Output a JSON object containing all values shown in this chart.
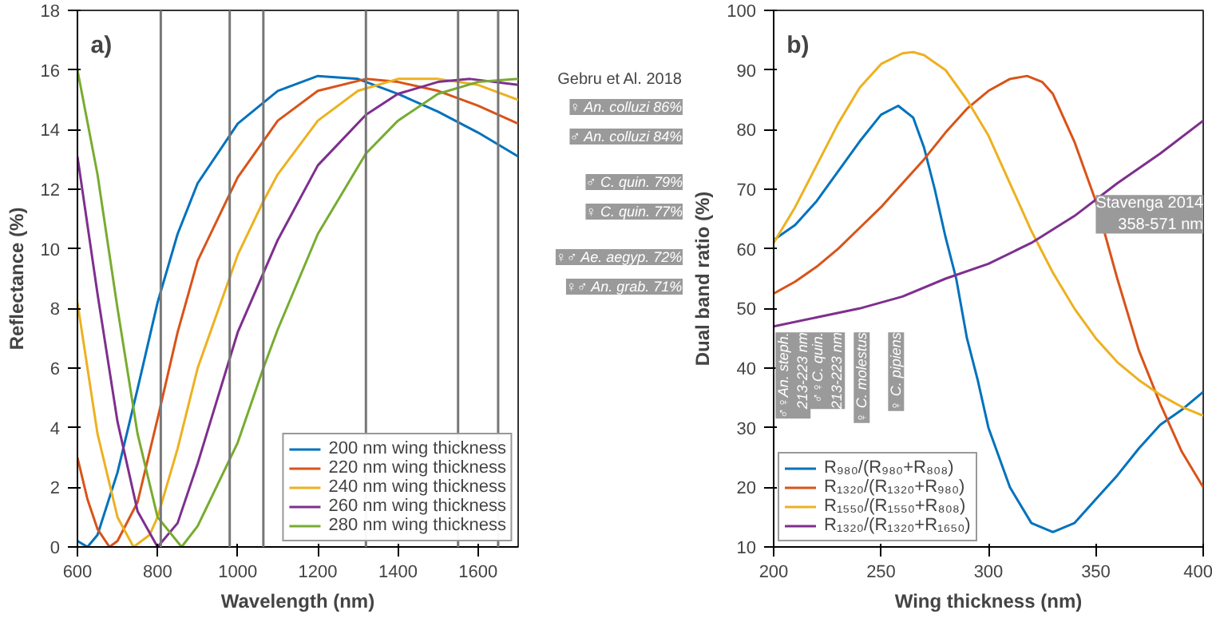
{
  "chart_data": [
    {
      "type": "line",
      "title": "a)",
      "xlabel": "Wavelength (nm)",
      "ylabel": "Reflectance (%)",
      "xlim": [
        600,
        1700
      ],
      "ylim": [
        0,
        18
      ],
      "xticks": [
        600,
        800,
        1000,
        1200,
        1400,
        1600
      ],
      "yticks": [
        0,
        2,
        4,
        6,
        8,
        10,
        12,
        14,
        16,
        18
      ],
      "grid": false,
      "legend": "bottom right",
      "line_style": "solid",
      "marker": "none",
      "series": [
        {
          "name": "200 nm wing thickness",
          "color": "#0072bd",
          "x": [
            600,
            625,
            650,
            700,
            750,
            800,
            850,
            900,
            1000,
            1100,
            1200,
            1300,
            1400,
            1500,
            1600,
            1700
          ],
          "values": [
            0.2,
            0,
            0.4,
            2.5,
            5.3,
            8.2,
            10.5,
            12.2,
            14.2,
            15.3,
            15.8,
            15.7,
            15.2,
            14.6,
            13.9,
            13.1
          ]
        },
        {
          "name": "220 nm wing thickness",
          "color": "#d95319",
          "x": [
            600,
            625,
            650,
            680,
            700,
            750,
            800,
            850,
            900,
            1000,
            1100,
            1200,
            1320,
            1400,
            1500,
            1600,
            1700
          ],
          "values": [
            3.0,
            1.6,
            0.6,
            0,
            0.2,
            1.5,
            4.3,
            7.2,
            9.6,
            12.4,
            14.3,
            15.3,
            15.7,
            15.6,
            15.3,
            14.8,
            14.2
          ]
        },
        {
          "name": "240 nm wing thickness",
          "color": "#edb120",
          "x": [
            600,
            650,
            700,
            740,
            780,
            800,
            850,
            900,
            1000,
            1064,
            1100,
            1200,
            1300,
            1400,
            1500,
            1600,
            1700
          ],
          "values": [
            8.2,
            3.8,
            1.0,
            0,
            0.4,
            1.0,
            3.3,
            6.0,
            9.8,
            11.6,
            12.5,
            14.3,
            15.3,
            15.7,
            15.7,
            15.5,
            15.0
          ]
        },
        {
          "name": "260 nm wing thickness",
          "color": "#7e2f8e",
          "x": [
            600,
            650,
            700,
            750,
            800,
            850,
            900,
            1000,
            1100,
            1200,
            1320,
            1400,
            1500,
            1580,
            1700
          ],
          "values": [
            13.1,
            8.5,
            4.2,
            1.2,
            0,
            0.8,
            2.8,
            7.2,
            10.3,
            12.8,
            14.5,
            15.2,
            15.6,
            15.7,
            15.5
          ]
        },
        {
          "name": "280 nm wing thickness",
          "color": "#77ac30",
          "x": [
            600,
            650,
            700,
            750,
            800,
            860,
            900,
            1000,
            1064,
            1100,
            1200,
            1320,
            1400,
            1500,
            1600,
            1700
          ],
          "values": [
            16.0,
            12.5,
            8.0,
            3.8,
            1.0,
            0,
            0.7,
            3.5,
            6.0,
            7.3,
            10.5,
            13.2,
            14.3,
            15.2,
            15.6,
            15.7
          ]
        }
      ],
      "ref_lines": [
        {
          "axis": "x",
          "value": 808,
          "color": "#777777"
        },
        {
          "axis": "x",
          "value": 980,
          "color": "#777777"
        },
        {
          "axis": "x",
          "value": 1064,
          "color": "#777777"
        },
        {
          "axis": "x",
          "value": 1320,
          "color": "#777777"
        },
        {
          "axis": "x",
          "value": 1550,
          "color": "#777777"
        },
        {
          "axis": "x",
          "value": 1650,
          "color": "#777777"
        }
      ]
    },
    {
      "type": "line",
      "title": "b)",
      "xlabel": "Wing thickness (nm)",
      "ylabel": "Dual band ratio (%)",
      "xlim": [
        200,
        400
      ],
      "ylim": [
        10,
        100
      ],
      "xticks": [
        200,
        250,
        300,
        350,
        400
      ],
      "yticks": [
        10,
        20,
        30,
        40,
        50,
        60,
        70,
        80,
        90,
        100
      ],
      "grid": false,
      "legend": "bottom left",
      "line_style": "solid",
      "marker": "none",
      "series": [
        {
          "name": "R₉₈₀/(R₉₈₀+R₈₀₈)",
          "color": "#0072bd",
          "x": [
            200,
            210,
            220,
            230,
            240,
            250,
            258,
            265,
            270,
            275,
            280,
            285,
            290,
            295,
            300,
            310,
            320,
            330,
            340,
            350,
            360,
            370,
            380,
            390,
            400
          ],
          "values": [
            61.5,
            64,
            68,
            73,
            78,
            82.5,
            84,
            82,
            77,
            70,
            62,
            55,
            45,
            38,
            30,
            20,
            14,
            12.5,
            14,
            18,
            22,
            26.5,
            30.5,
            33,
            36
          ]
        },
        {
          "name": "R₁₃₂₀/(R₁₃₂₀+R₉₈₀)",
          "color": "#d95319",
          "x": [
            200,
            210,
            220,
            230,
            240,
            250,
            260,
            270,
            280,
            290,
            300,
            310,
            318,
            325,
            330,
            340,
            350,
            360,
            370,
            380,
            390,
            400
          ],
          "values": [
            52.5,
            54.5,
            57,
            60,
            63.5,
            67,
            71,
            75,
            79.5,
            83.5,
            86.5,
            88.5,
            89,
            88,
            86,
            78,
            68,
            55,
            43,
            34,
            26,
            20
          ]
        },
        {
          "name": "R₁₅₅₀/(R₁₅₅₀+R₈₀₈)",
          "color": "#edb120",
          "x": [
            200,
            210,
            220,
            230,
            240,
            250,
            260,
            265,
            270,
            280,
            290,
            300,
            310,
            320,
            330,
            340,
            350,
            360,
            370,
            380,
            390,
            400
          ],
          "values": [
            61,
            67,
            74,
            81,
            87,
            91,
            92.8,
            93,
            92.5,
            90,
            85,
            79,
            71,
            63,
            56,
            50,
            45,
            41,
            38,
            35.5,
            33.5,
            32
          ]
        },
        {
          "name": "R₁₃₂₀/(R₁₃₂₀+R₁₆₅₀)",
          "color": "#7e2f8e",
          "x": [
            200,
            220,
            240,
            260,
            280,
            300,
            320,
            340,
            360,
            380,
            400
          ],
          "values": [
            47,
            48.5,
            50,
            52,
            55,
            57.5,
            61,
            65.5,
            71,
            76,
            81.5
          ]
        }
      ],
      "annotations": [
        "Gebru et Al. 2018",
        "♀ An. colluzi 86%",
        "♂ An. colluzi 84%",
        "♂ C. quin. 79%",
        "♀ C. quin. 77%",
        "♀♂ Ae. aegyp. 72%",
        "♀♂ An. grab. 71%",
        "♂♀An. steph.\n213-223 nm",
        "♂♀C. quin.\n213-223 nm",
        "♀ C. molestus",
        "♀ C. pipiens",
        "Stavenga 2014\n358-571 nm"
      ]
    }
  ]
}
